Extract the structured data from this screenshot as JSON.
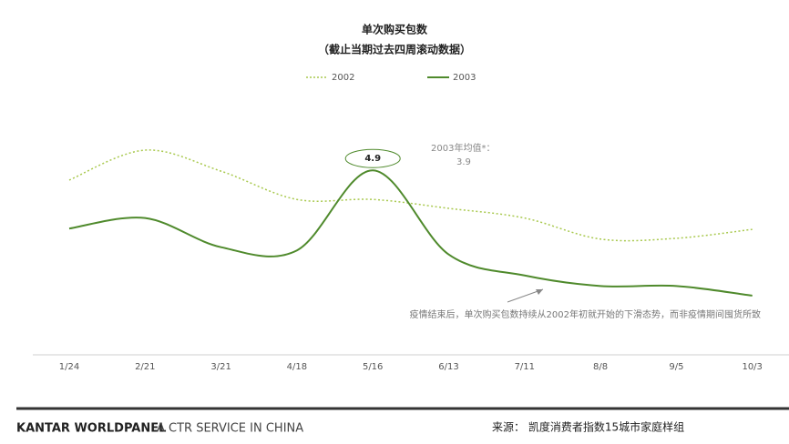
{
  "chart_data": {
    "type": "line",
    "title": "单次购买包数",
    "subtitle": "（截止当期过去四周滚动数据）",
    "categories": [
      "1/24",
      "2/21",
      "3/21",
      "4/18",
      "5/16",
      "6/13",
      "7/11",
      "8/8",
      "9/5",
      "10/3"
    ],
    "series": [
      {
        "name": "2002",
        "color": "#a9c94f",
        "style": "dotted",
        "values": [
          4.78,
          5.15,
          4.89,
          4.54,
          4.54,
          4.43,
          4.31,
          4.05,
          4.06,
          4.17
        ]
      },
      {
        "name": "2003",
        "color": "#4f8a2c",
        "style": "solid",
        "values": [
          4.18,
          4.31,
          3.95,
          3.91,
          4.9,
          3.86,
          3.6,
          3.47,
          3.47,
          3.35
        ]
      }
    ],
    "annotations": {
      "average_label": "2003年均值*：",
      "average_value": "3.9",
      "note": "疫情结束后，单次购买包数持续从2002年初就开始的下滑态势，而非疫情期间囤货所致"
    },
    "footer": {
      "brand": "KANTAR WORLDPANEL",
      "brand_tagline": "A CTR SERVICE IN CHINA",
      "source": "来源： 凯度消费者指数15城市家庭样组"
    }
  }
}
